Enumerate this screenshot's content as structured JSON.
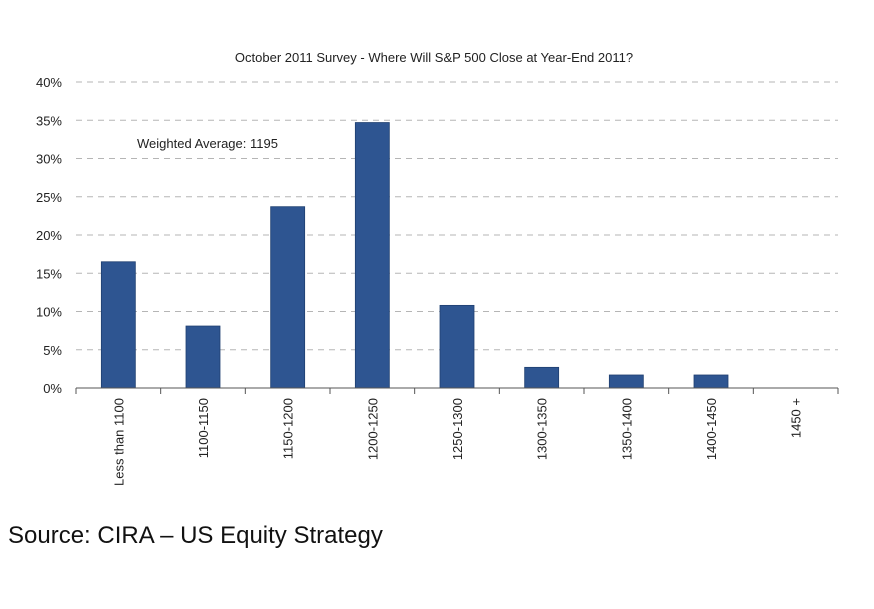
{
  "chart_data": {
    "type": "bar",
    "title": "October 2011 Survey - Where Will S&P 500 Close at Year-End 2011?",
    "categories": [
      "Less than 1100",
      "1100-1150",
      "1150-1200",
      "1200-1250",
      "1250-1300",
      "1300-1350",
      "1350-1400",
      "1400-1450",
      "1450 +"
    ],
    "values": [
      16.5,
      8.1,
      23.7,
      34.7,
      10.8,
      2.7,
      1.7,
      1.7,
      0
    ],
    "ylim": [
      0,
      40
    ],
    "yticks": [
      "0%",
      "5%",
      "10%",
      "15%",
      "20%",
      "25%",
      "30%",
      "35%",
      "40%"
    ],
    "ytick_values": [
      0,
      5,
      10,
      15,
      20,
      25,
      30,
      35,
      40
    ],
    "grid": "horizontal dashed",
    "bar_color": "#2e5591",
    "annotation": "Weighted Average: 1195"
  },
  "source": "Source: CIRA – US Equity Strategy"
}
